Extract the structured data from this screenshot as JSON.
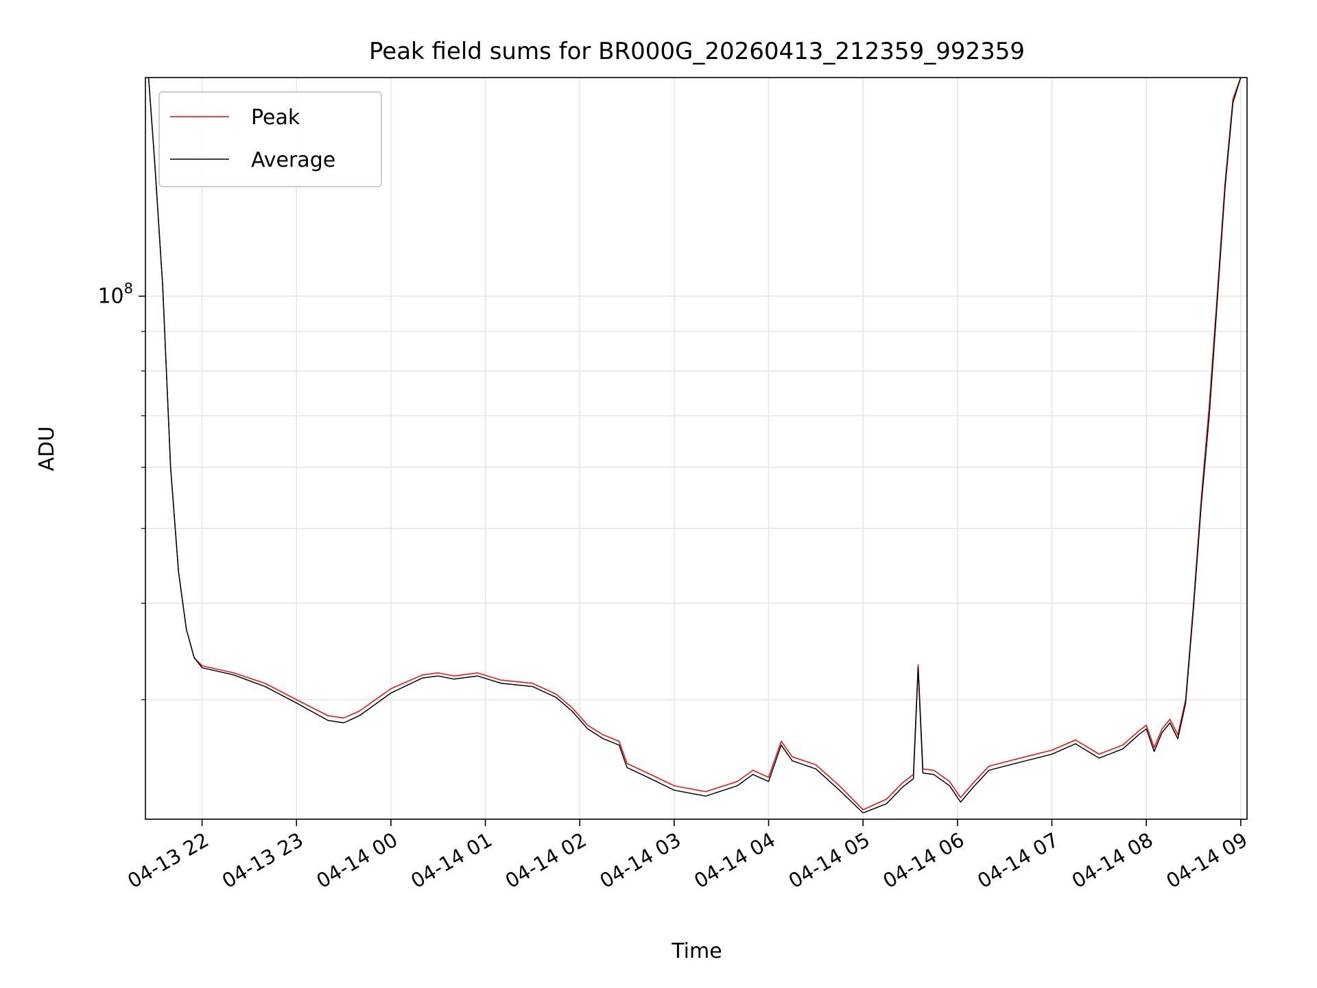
{
  "chart_data": {
    "type": "line",
    "title": "Peak field sums for BR000G_20260413_212359_992359",
    "xlabel": "Time",
    "ylabel": "ADU",
    "yscale": "log",
    "grid": true,
    "legend_position": "upper-left",
    "xlim": [
      "2026-04-13 21:24",
      "2026-04-14 09:04"
    ],
    "ylim": [
      21000000,
      192000000
    ],
    "xticks": [
      {
        "value": "2026-04-13 22:00",
        "label": "04-13 22"
      },
      {
        "value": "2026-04-13 23:00",
        "label": "04-13 23"
      },
      {
        "value": "2026-04-14 00:00",
        "label": "04-14 00"
      },
      {
        "value": "2026-04-14 01:00",
        "label": "04-14 01"
      },
      {
        "value": "2026-04-14 02:00",
        "label": "04-14 02"
      },
      {
        "value": "2026-04-14 03:00",
        "label": "04-14 03"
      },
      {
        "value": "2026-04-14 04:00",
        "label": "04-14 04"
      },
      {
        "value": "2026-04-14 05:00",
        "label": "04-14 05"
      },
      {
        "value": "2026-04-14 06:00",
        "label": "04-14 06"
      },
      {
        "value": "2026-04-14 07:00",
        "label": "04-14 07"
      },
      {
        "value": "2026-04-14 08:00",
        "label": "04-14 08"
      },
      {
        "value": "2026-04-14 09:00",
        "label": "04-14 09"
      }
    ],
    "yticks_major": [
      {
        "value": 100000000,
        "label": "10",
        "exponent": "8"
      }
    ],
    "yticks_minor": [
      30000000,
      40000000,
      50000000,
      60000000,
      70000000,
      80000000,
      90000000,
      200000000
    ],
    "x": [
      "2026-04-13 21:26",
      "2026-04-13 21:30",
      "2026-04-13 21:35",
      "2026-04-13 21:40",
      "2026-04-13 21:45",
      "2026-04-13 21:50",
      "2026-04-13 21:55",
      "2026-04-13 22:00",
      "2026-04-13 22:20",
      "2026-04-13 22:40",
      "2026-04-13 23:00",
      "2026-04-13 23:20",
      "2026-04-13 23:30",
      "2026-04-13 23:40",
      "2026-04-14 00:00",
      "2026-04-14 00:20",
      "2026-04-14 00:30",
      "2026-04-14 00:40",
      "2026-04-14 00:55",
      "2026-04-14 01:10",
      "2026-04-14 01:30",
      "2026-04-14 01:45",
      "2026-04-14 01:55",
      "2026-04-14 02:05",
      "2026-04-14 02:15",
      "2026-04-14 02:25",
      "2026-04-14 02:30",
      "2026-04-14 02:45",
      "2026-04-14 03:00",
      "2026-04-14 03:20",
      "2026-04-14 03:40",
      "2026-04-14 03:50",
      "2026-04-14 04:00",
      "2026-04-14 04:08",
      "2026-04-14 04:15",
      "2026-04-14 04:30",
      "2026-04-14 04:45",
      "2026-04-14 05:00",
      "2026-04-14 05:15",
      "2026-04-14 05:25",
      "2026-04-14 05:32",
      "2026-04-14 05:35",
      "2026-04-14 05:38",
      "2026-04-14 05:45",
      "2026-04-14 05:55",
      "2026-04-14 06:02",
      "2026-04-14 06:10",
      "2026-04-14 06:20",
      "2026-04-14 06:40",
      "2026-04-14 07:00",
      "2026-04-14 07:15",
      "2026-04-14 07:30",
      "2026-04-14 07:45",
      "2026-04-14 07:55",
      "2026-04-14 08:00",
      "2026-04-14 08:05",
      "2026-04-14 08:10",
      "2026-04-14 08:15",
      "2026-04-14 08:20",
      "2026-04-14 08:25",
      "2026-04-14 08:30",
      "2026-04-14 08:35",
      "2026-04-14 08:40",
      "2026-04-14 08:45",
      "2026-04-14 08:50",
      "2026-04-14 08:55",
      "2026-04-14 09:00"
    ],
    "series": [
      {
        "name": "Peak",
        "color": "#ff0000",
        "values": [
          192000000,
          148000000,
          103000000,
          60000000,
          44000000,
          37000000,
          34000000,
          33200000,
          32500000,
          31500000,
          30000000,
          28600000,
          28400000,
          29000000,
          31000000,
          32300000,
          32500000,
          32200000,
          32500000,
          31800000,
          31500000,
          30500000,
          29300000,
          27800000,
          27000000,
          26500000,
          24800000,
          24000000,
          23200000,
          22800000,
          23500000,
          24300000,
          23800000,
          26500000,
          25300000,
          24700000,
          23200000,
          21600000,
          22300000,
          23400000,
          24000000,
          33300000,
          24400000,
          24300000,
          23500000,
          22400000,
          23400000,
          24600000,
          25200000,
          25800000,
          26600000,
          25500000,
          26200000,
          27300000,
          27800000,
          26000000,
          27500000,
          28300000,
          27000000,
          30000000,
          40000000,
          55000000,
          72000000,
          100000000,
          140000000,
          180000000,
          192000000
        ]
      },
      {
        "name": "Average",
        "color": "#000000",
        "values": [
          192000000,
          148000000,
          103000000,
          60000000,
          44000000,
          37000000,
          34000000,
          33000000,
          32300000,
          31200000,
          29700000,
          28200000,
          28000000,
          28600000,
          30600000,
          32000000,
          32200000,
          31900000,
          32200000,
          31500000,
          31200000,
          30200000,
          29000000,
          27500000,
          26700000,
          26200000,
          24500000,
          23700000,
          22900000,
          22500000,
          23200000,
          24000000,
          23500000,
          26200000,
          25000000,
          24400000,
          22900000,
          21400000,
          22000000,
          23100000,
          23700000,
          33000000,
          24100000,
          24000000,
          23200000,
          22100000,
          23100000,
          24300000,
          24900000,
          25500000,
          26300000,
          25200000,
          25900000,
          27000000,
          27500000,
          25700000,
          27200000,
          28000000,
          26700000,
          29700000,
          39500000,
          54000000,
          70000000,
          98000000,
          138000000,
          178000000,
          192000000
        ]
      }
    ]
  }
}
